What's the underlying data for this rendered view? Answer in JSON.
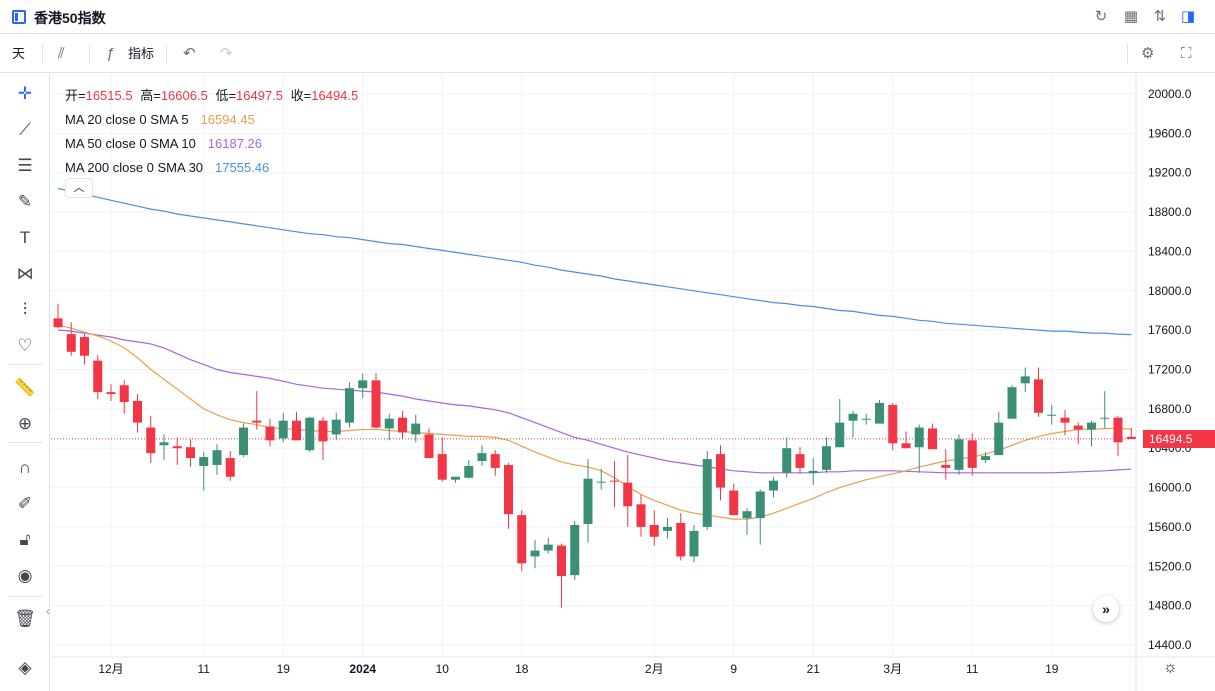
{
  "window": {
    "title": "香港50指数"
  },
  "toolbar": {
    "interval": "天",
    "indicators_label": "指标"
  },
  "legend": {
    "open_label": "开=",
    "open": "16515.5",
    "high_label": "高=",
    "high": "16606.5",
    "low_label": "低=",
    "low": "16497.5",
    "close_label": "收=",
    "close": "16494.5",
    "ma1_name": "MA 20 close 0 SMA 5",
    "ma1_value": "16594.45",
    "ma2_name": "MA 50 close 0 SMA 10",
    "ma2_value": "16187.26",
    "ma3_name": "MA 200 close 0 SMA 30",
    "ma3_value": "17555.46"
  },
  "current_price_label": "16494.5",
  "colors": {
    "up": "#26a69a",
    "up_fill": "#3b8f77",
    "down": "#f23645",
    "ma20": "#e9a04f",
    "ma50": "#a566e0",
    "ma200": "#4a90e2",
    "accent": "#2962ff"
  },
  "icons": [
    "sidebar-icon",
    "refresh-icon",
    "layout-icon",
    "sort-icon",
    "panel-icon",
    "candles-icon",
    "fx-icon",
    "undo-icon",
    "redo-icon",
    "settings-icon",
    "fullscreen-icon",
    "crosshair-icon",
    "trendline-icon",
    "fib-icon",
    "brush-icon",
    "text-icon",
    "pattern-icon",
    "forecast-icon",
    "heart-icon",
    "ruler-icon",
    "zoom-icon",
    "magnet-icon",
    "lock-draw-icon",
    "lock-icon",
    "eye-icon",
    "trash-icon",
    "layers-icon"
  ],
  "chart_data": {
    "type": "candlestick",
    "y_ticks": [
      "20000.0",
      "19600.0",
      "19200.0",
      "18800.0",
      "18400.0",
      "18000.0",
      "17600.0",
      "17200.0",
      "16800.0",
      "16400.0",
      "16000.0",
      "15600.0",
      "15200.0",
      "14800.0",
      "14400.0"
    ],
    "ylim": [
      14300,
      20150
    ],
    "x_ticks": [
      {
        "label": "12月",
        "index": 4,
        "bold": false
      },
      {
        "label": "11",
        "index": 11,
        "bold": false
      },
      {
        "label": "19",
        "index": 17,
        "bold": false
      },
      {
        "label": "2024",
        "index": 23,
        "bold": true
      },
      {
        "label": "10",
        "index": 29,
        "bold": false
      },
      {
        "label": "18",
        "index": 35,
        "bold": false
      },
      {
        "label": "2月",
        "index": 45,
        "bold": false
      },
      {
        "label": "9",
        "index": 51,
        "bold": false
      },
      {
        "label": "21",
        "index": 57,
        "bold": false
      },
      {
        "label": "3月",
        "index": 63,
        "bold": false
      },
      {
        "label": "11",
        "index": 69,
        "bold": false
      },
      {
        "label": "19",
        "index": 75,
        "bold": false
      }
    ],
    "candles": [
      [
        17720,
        17870,
        17620,
        17630
      ],
      [
        17560,
        17680,
        17340,
        17380
      ],
      [
        17530,
        17560,
        17250,
        17340
      ],
      [
        17290,
        17350,
        16900,
        16970
      ],
      [
        16970,
        17050,
        16880,
        16950
      ],
      [
        17040,
        17090,
        16750,
        16870
      ],
      [
        16880,
        16950,
        16560,
        16660
      ],
      [
        16610,
        16730,
        16250,
        16350
      ],
      [
        16430,
        16540,
        16280,
        16460
      ],
      [
        16420,
        16510,
        16230,
        16400
      ],
      [
        16410,
        16490,
        16210,
        16300
      ],
      [
        16220,
        16360,
        15970,
        16310
      ],
      [
        16230,
        16440,
        16130,
        16380
      ],
      [
        16300,
        16370,
        16070,
        16110
      ],
      [
        16330,
        16650,
        16310,
        16610
      ],
      [
        16680,
        16980,
        16590,
        16660
      ],
      [
        16620,
        16700,
        16420,
        16480
      ],
      [
        16500,
        16760,
        16460,
        16680
      ],
      [
        16680,
        16770,
        16500,
        16480
      ],
      [
        16380,
        16720,
        16360,
        16710
      ],
      [
        16680,
        16720,
        16280,
        16470
      ],
      [
        16540,
        16760,
        16480,
        16690
      ],
      [
        16660,
        17070,
        16610,
        17010
      ],
      [
        17010,
        17160,
        16910,
        17090
      ],
      [
        17090,
        17160,
        16600,
        16610
      ],
      [
        16600,
        16750,
        16480,
        16700
      ],
      [
        16710,
        16780,
        16500,
        16560
      ],
      [
        16540,
        16740,
        16460,
        16650
      ],
      [
        16540,
        16600,
        16350,
        16300
      ],
      [
        16340,
        16510,
        16060,
        16080
      ],
      [
        16080,
        16110,
        16050,
        16110
      ],
      [
        16100,
        16280,
        16090,
        16220
      ],
      [
        16270,
        16430,
        16220,
        16350
      ],
      [
        16340,
        16380,
        16120,
        16200
      ],
      [
        16230,
        16250,
        15580,
        15730
      ],
      [
        15720,
        15770,
        15150,
        15230
      ],
      [
        15300,
        15470,
        15180,
        15360
      ],
      [
        15360,
        15490,
        15330,
        15420
      ],
      [
        15410,
        15430,
        14780,
        15100
      ],
      [
        15110,
        15660,
        15060,
        15620
      ],
      [
        15630,
        16290,
        15440,
        16090
      ],
      [
        16060,
        16190,
        15980,
        16060
      ],
      [
        16070,
        16270,
        15800,
        16060
      ],
      [
        16050,
        16330,
        15600,
        15810
      ],
      [
        15830,
        15930,
        15500,
        15600
      ],
      [
        15620,
        15770,
        15410,
        15500
      ],
      [
        15560,
        15690,
        15480,
        15600
      ],
      [
        15640,
        15740,
        15260,
        15300
      ],
      [
        15300,
        15620,
        15240,
        15560
      ],
      [
        15600,
        16370,
        15570,
        16290
      ],
      [
        16340,
        16430,
        15870,
        16000
      ],
      [
        15970,
        16040,
        15730,
        15720
      ],
      [
        15690,
        15790,
        15520,
        15760
      ],
      [
        15690,
        15980,
        15420,
        15960
      ],
      [
        15970,
        16110,
        15900,
        16070
      ],
      [
        16150,
        16510,
        16100,
        16400
      ],
      [
        16340,
        16410,
        16140,
        16200
      ],
      [
        16150,
        16300,
        16030,
        16170
      ],
      [
        16180,
        16510,
        16150,
        16420
      ],
      [
        16410,
        16900,
        16410,
        16660
      ],
      [
        16680,
        16780,
        16510,
        16750
      ],
      [
        16690,
        16750,
        16640,
        16700
      ],
      [
        16650,
        16890,
        16660,
        16860
      ],
      [
        16840,
        16860,
        16380,
        16450
      ],
      [
        16450,
        16570,
        16400,
        16400
      ],
      [
        16410,
        16640,
        16150,
        16610
      ],
      [
        16600,
        16650,
        16400,
        16390
      ],
      [
        16230,
        16390,
        16080,
        16200
      ],
      [
        16180,
        16540,
        16130,
        16490
      ],
      [
        16480,
        16550,
        16120,
        16200
      ],
      [
        16280,
        16360,
        16250,
        16320
      ],
      [
        16330,
        16770,
        16330,
        16660
      ],
      [
        16700,
        17040,
        16700,
        17020
      ],
      [
        17060,
        17220,
        16970,
        17130
      ],
      [
        17100,
        17220,
        16720,
        16760
      ],
      [
        16740,
        16840,
        16640,
        16740
      ],
      [
        16710,
        16790,
        16530,
        16660
      ],
      [
        16630,
        16660,
        16440,
        16590
      ],
      [
        16590,
        16680,
        16420,
        16660
      ],
      [
        16710,
        16980,
        16600,
        16710
      ],
      [
        16710,
        16730,
        16320,
        16460
      ],
      [
        16515.5,
        16606.5,
        16497.5,
        16494.5
      ]
    ],
    "ma20": [
      17650,
      17620,
      17580,
      17540,
      17490,
      17420,
      17320,
      17200,
      17100,
      17000,
      16900,
      16800,
      16740,
      16690,
      16660,
      16640,
      16610,
      16600,
      16590,
      16580,
      16570,
      16570,
      16580,
      16590,
      16590,
      16580,
      16570,
      16560,
      16550,
      16540,
      16530,
      16520,
      16520,
      16510,
      16480,
      16420,
      16360,
      16310,
      16260,
      16230,
      16210,
      16170,
      16100,
      16010,
      15930,
      15870,
      15820,
      15770,
      15740,
      15720,
      15700,
      15680,
      15680,
      15700,
      15740,
      15790,
      15840,
      15890,
      15950,
      16000,
      16040,
      16080,
      16110,
      16140,
      16170,
      16210,
      16240,
      16270,
      16290,
      16310,
      16340,
      16380,
      16430,
      16480,
      16520,
      16550,
      16570,
      16590,
      16590,
      16600,
      16600,
      16594
    ],
    "ma50": [
      17600,
      17590,
      17570,
      17550,
      17530,
      17500,
      17480,
      17460,
      17420,
      17360,
      17300,
      17250,
      17200,
      17170,
      17150,
      17130,
      17110,
      17080,
      17050,
      17030,
      17010,
      17000,
      16990,
      16980,
      16970,
      16950,
      16930,
      16900,
      16880,
      16860,
      16840,
      16830,
      16810,
      16790,
      16760,
      16710,
      16660,
      16610,
      16560,
      16510,
      16480,
      16440,
      16400,
      16360,
      16330,
      16300,
      16270,
      16250,
      16230,
      16210,
      16190,
      16170,
      16160,
      16150,
      16150,
      16150,
      16150,
      16150,
      16160,
      16160,
      16170,
      16170,
      16170,
      16170,
      16165,
      16160,
      16155,
      16150,
      16150,
      16150,
      16150,
      16150,
      16150,
      16150,
      16150,
      16150,
      16155,
      16160,
      16165,
      16170,
      16180,
      16187
    ],
    "ma200": [
      19040,
      19010,
      18980,
      18950,
      18920,
      18890,
      18860,
      18830,
      18810,
      18780,
      18760,
      18740,
      18720,
      18700,
      18680,
      18660,
      18640,
      18620,
      18600,
      18580,
      18570,
      18550,
      18540,
      18520,
      18500,
      18480,
      18470,
      18450,
      18430,
      18410,
      18390,
      18370,
      18350,
      18330,
      18310,
      18290,
      18260,
      18240,
      18210,
      18190,
      18170,
      18150,
      18120,
      18100,
      18080,
      18060,
      18040,
      18020,
      18000,
      17980,
      17960,
      17940,
      17920,
      17900,
      17880,
      17870,
      17850,
      17840,
      17820,
      17800,
      17790,
      17770,
      17750,
      17740,
      17720,
      17700,
      17690,
      17670,
      17660,
      17650,
      17640,
      17630,
      17620,
      17610,
      17600,
      17590,
      17590,
      17580,
      17570,
      17570,
      17560,
      17555
    ],
    "last_close": 16494.5
  }
}
